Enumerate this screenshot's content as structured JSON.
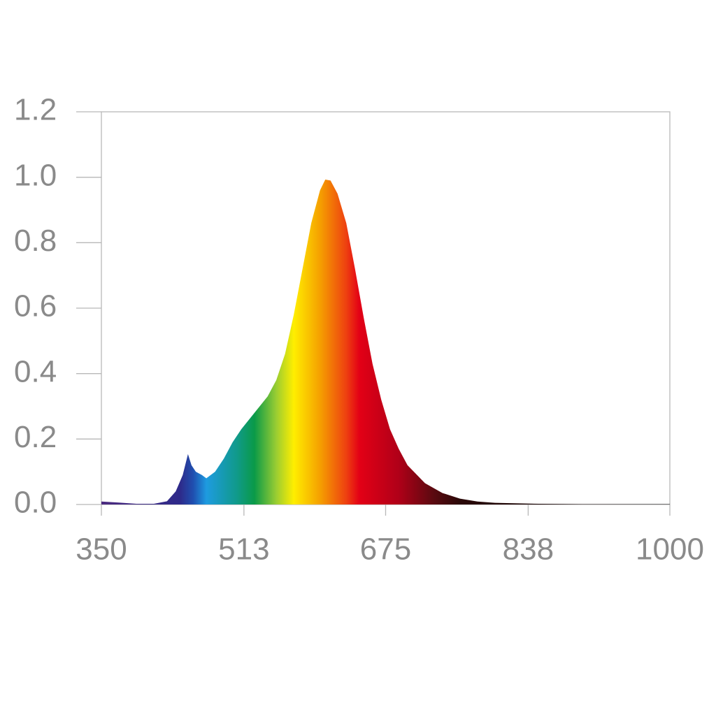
{
  "chart_data": {
    "type": "area",
    "x": [
      350,
      370,
      390,
      410,
      425,
      435,
      443,
      449,
      453,
      458,
      465,
      470,
      480,
      490,
      500,
      510,
      525,
      540,
      550,
      560,
      570,
      580,
      590,
      600,
      606,
      612,
      620,
      630,
      640,
      650,
      660,
      670,
      680,
      690,
      700,
      720,
      740,
      760,
      780,
      800,
      850,
      900,
      950,
      1000
    ],
    "values": [
      0.009,
      0.006,
      0.002,
      0.002,
      0.01,
      0.04,
      0.09,
      0.154,
      0.12,
      0.1,
      0.09,
      0.08,
      0.1,
      0.14,
      0.19,
      0.23,
      0.28,
      0.33,
      0.38,
      0.46,
      0.58,
      0.72,
      0.86,
      0.96,
      0.993,
      0.99,
      0.95,
      0.86,
      0.72,
      0.57,
      0.43,
      0.32,
      0.23,
      0.17,
      0.12,
      0.065,
      0.035,
      0.018,
      0.009,
      0.005,
      0.002,
      0.001,
      0.001,
      0.001
    ],
    "xlim": [
      350,
      1000
    ],
    "xticks": [
      350,
      513,
      675,
      838,
      1000
    ],
    "ylim": [
      0,
      1.2
    ],
    "yticks": [
      {
        "value": 0,
        "label": "0.0"
      },
      0.2,
      0.4,
      0.6,
      0.8,
      {
        "value": 1,
        "label": "1.0"
      },
      1.2
    ],
    "gradient": [
      {
        "x": 350,
        "color": "#4b2a7f"
      },
      {
        "x": 440,
        "color": "#2e2a8a"
      },
      {
        "x": 455,
        "color": "#1f4fb0"
      },
      {
        "x": 470,
        "color": "#1e9be0"
      },
      {
        "x": 505,
        "color": "#109a8a"
      },
      {
        "x": 525,
        "color": "#0a9a48"
      },
      {
        "x": 550,
        "color": "#9acd32"
      },
      {
        "x": 570,
        "color": "#ffee00"
      },
      {
        "x": 600,
        "color": "#f5a000"
      },
      {
        "x": 630,
        "color": "#ee4010"
      },
      {
        "x": 645,
        "color": "#e30016"
      },
      {
        "x": 690,
        "color": "#b00018"
      },
      {
        "x": 730,
        "color": "#5a0a10"
      },
      {
        "x": 760,
        "color": "#2a0808"
      },
      {
        "x": 1000,
        "color": "#000000"
      }
    ]
  }
}
